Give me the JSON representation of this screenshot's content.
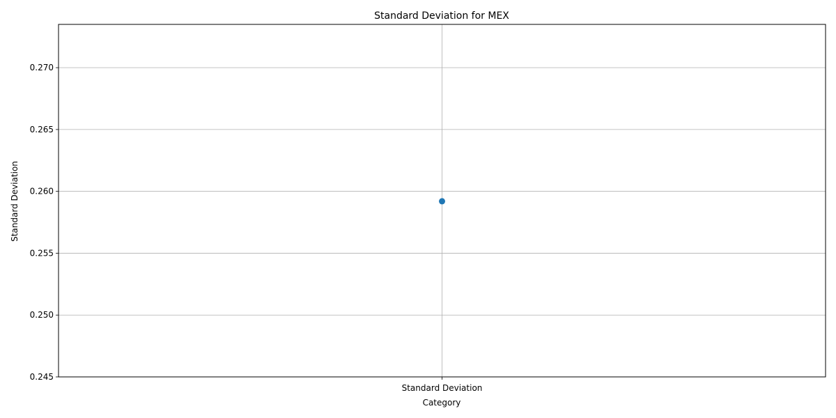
{
  "chart_data": {
    "type": "line",
    "title": "Standard Deviation for MEX",
    "xlabel": "Category",
    "ylabel": "Standard Deviation",
    "categories": [
      "Standard Deviation"
    ],
    "series": [
      {
        "values": [
          0.2592
        ]
      }
    ],
    "ylim": [
      0.245,
      0.2735
    ],
    "yticks": [
      "0.245",
      "0.250",
      "0.255",
      "0.260",
      "0.265",
      "0.270"
    ],
    "grid": true,
    "marker": "circle",
    "colors": {
      "series": "#1f77b4",
      "grid": "#b0b0b0",
      "axis": "#000000"
    }
  }
}
